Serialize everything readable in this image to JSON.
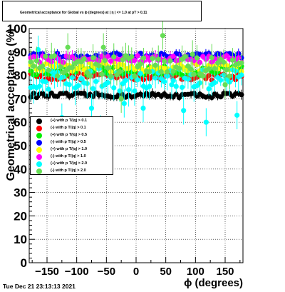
{
  "title": "Geometrical acceptance for Global vs ϕ (degrees) at | η | <= 1.0 at pT > 0.11",
  "footer": "Tue Dec 21 23:13:13 2021",
  "chart_data": {
    "type": "scatter",
    "xlabel": "ϕ (degrees)",
    "ylabel": "Geometrical acceptance (%)",
    "xlim": [
      -180,
      180
    ],
    "ylim": [
      0,
      100
    ],
    "grid": true,
    "legend_position": "middle-left",
    "x_ticks": [
      -150,
      -100,
      -50,
      0,
      50,
      100,
      150
    ],
    "x_tick_labels": [
      "−150",
      "−100",
      "−50",
      "0",
      "50",
      "100",
      "150"
    ],
    "y_ticks": [
      0,
      10,
      20,
      30,
      40,
      50,
      60,
      70,
      80,
      90,
      100
    ],
    "y_tick_labels": [
      "0",
      "10",
      "20",
      "30",
      "40",
      "50",
      "60",
      "70",
      "80",
      "90",
      "100"
    ],
    "series": [
      {
        "name": "(+) with p T/|q| > 0.1",
        "color": "#000000",
        "mean": 71.5,
        "spread": 1.0,
        "err": 1.5,
        "outliers": []
      },
      {
        "name": "(-) with p T/|q| > 0.1",
        "color": "#ff0000",
        "mean": 79.5,
        "spread": 1.5,
        "err": 1.5,
        "outliers": []
      },
      {
        "name": "(+) with p T/|q| > 0.5",
        "color": "#00ee00",
        "mean": 82.0,
        "spread": 2.0,
        "err": 2.0,
        "outliers": []
      },
      {
        "name": "(-) with p T/|q| > 0.5",
        "color": "#0000ff",
        "mean": 88.5,
        "spread": 1.0,
        "err": 1.5,
        "outliers": []
      },
      {
        "name": "(+) with p T/|q| > 1.0",
        "color": "#ffff00",
        "mean": 83.5,
        "spread": 2.0,
        "err": 2.0,
        "outliers": []
      },
      {
        "name": "(-) with p T/|q| > 1.0",
        "color": "#ff00ff",
        "mean": 87.0,
        "spread": 1.5,
        "err": 2.0,
        "outliers": []
      },
      {
        "name": "(+) with p T/|q| > 2.0",
        "color": "#00ffff",
        "mean": 78.0,
        "spread": 5.0,
        "err": 5.0,
        "outliers": [
          [
            -165,
            91
          ],
          [
            -125,
            62
          ],
          [
            -75,
            66
          ],
          [
            -60,
            57
          ],
          [
            -20,
            68
          ],
          [
            12,
            66
          ],
          [
            60,
            76
          ],
          [
            80,
            65
          ],
          [
            118,
            60
          ],
          [
            170,
            63
          ]
        ]
      },
      {
        "name": "(-) with p T/|q| > 2.0",
        "color": "#66dd55",
        "mean": 84.0,
        "spread": 4.5,
        "err": 4.0,
        "outliers": [
          [
            -115,
            92
          ],
          [
            -55,
            92
          ],
          [
            -25,
            70
          ],
          [
            45,
            97
          ],
          [
            95,
            89
          ],
          [
            150,
            76
          ]
        ]
      }
    ]
  }
}
